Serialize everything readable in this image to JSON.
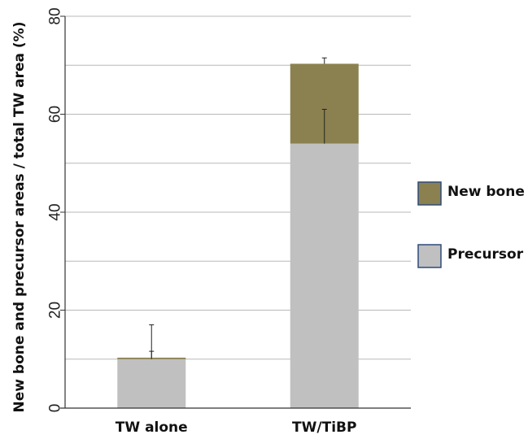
{
  "chart_data": {
    "type": "bar",
    "stacked": true,
    "categories": [
      "TW alone",
      "TW/TiBP"
    ],
    "series": [
      {
        "name": "Precursor",
        "values": [
          10,
          54
        ],
        "error": [
          7,
          7
        ],
        "color": "#c0c0c0"
      },
      {
        "name": "New bone",
        "values": [
          0.3,
          16.3
        ],
        "error": [
          1.3,
          1.2
        ],
        "color": "#8b8150"
      }
    ],
    "ylabel": "New bone and precursor areas / total TW area (%)",
    "xlabel": "",
    "ylim": [
      0,
      80
    ],
    "yticks": [
      0,
      20,
      40,
      60,
      80
    ],
    "grid": true,
    "legend": "right",
    "legend_order": [
      "New bone",
      "Precursor"
    ],
    "legend_border_color": "#2e4a7a"
  }
}
